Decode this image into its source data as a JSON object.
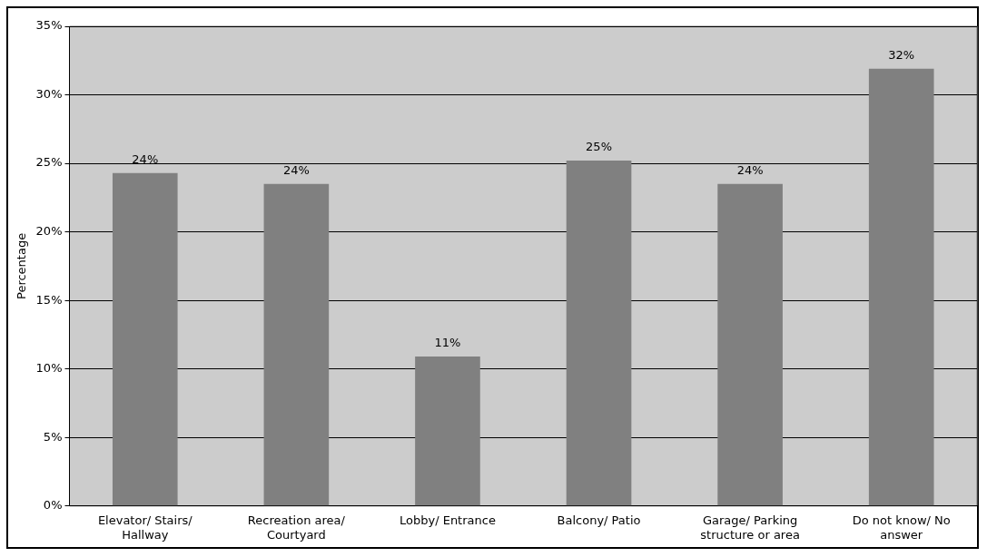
{
  "chart_data": {
    "type": "bar",
    "ylabel": "Percentage",
    "categories": [
      "Elevator/ Stairs/ Hallway",
      "Recreation area/ Courtyard",
      "Lobby/ Entrance",
      "Balcony/ Patio",
      "Garage/ Parking structure or area",
      "Do not know/ No answer"
    ],
    "values": [
      24.3,
      23.5,
      10.9,
      25.2,
      23.5,
      31.9
    ],
    "value_labels": [
      "24%",
      "24%",
      "11%",
      "25%",
      "24%",
      "32%"
    ],
    "color": "#808080",
    "ylim": [
      0,
      35
    ],
    "yticks": [
      {
        "value": 0,
        "label": "0%"
      },
      {
        "value": 5,
        "label": "5%"
      },
      {
        "value": 10,
        "label": "10%"
      },
      {
        "value": 15,
        "label": "15%"
      },
      {
        "value": 20,
        "label": "20%"
      },
      {
        "value": 25,
        "label": "25%"
      },
      {
        "value": 30,
        "label": "30%"
      },
      {
        "value": 35,
        "label": "35%"
      }
    ],
    "grid": "y",
    "legend": false
  }
}
